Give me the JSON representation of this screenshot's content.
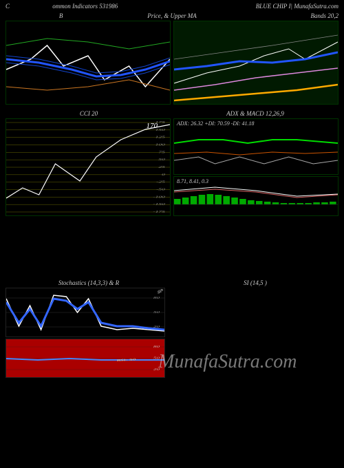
{
  "header": {
    "left_prefix": "C",
    "left_text": "ommon Indicators 531986",
    "right_text": "BLUE CHIP I| MunafaSutra.com"
  },
  "row1_titles": {
    "left": "B",
    "center": "Price, & Upper MA",
    "right": "Bands 20,2"
  },
  "chart_bb_left": {
    "background": "#000000",
    "border": "#003300",
    "lines": [
      {
        "color": "#ffffff",
        "width": 1.5,
        "points": [
          [
            0,
            70
          ],
          [
            15,
            55
          ],
          [
            25,
            35
          ],
          [
            35,
            65
          ],
          [
            50,
            50
          ],
          [
            60,
            85
          ],
          [
            75,
            65
          ],
          [
            85,
            95
          ],
          [
            100,
            55
          ]
        ]
      },
      {
        "color": "#2255ff",
        "width": 3,
        "points": [
          [
            0,
            55
          ],
          [
            20,
            60
          ],
          [
            40,
            70
          ],
          [
            55,
            80
          ],
          [
            70,
            78
          ],
          [
            85,
            70
          ],
          [
            100,
            58
          ]
        ]
      },
      {
        "color": "#1144cc",
        "width": 1,
        "points": [
          [
            0,
            50
          ],
          [
            20,
            55
          ],
          [
            40,
            65
          ],
          [
            55,
            75
          ],
          [
            70,
            73
          ],
          [
            85,
            65
          ],
          [
            100,
            53
          ]
        ]
      },
      {
        "color": "#1144cc",
        "width": 1,
        "points": [
          [
            0,
            60
          ],
          [
            20,
            65
          ],
          [
            40,
            75
          ],
          [
            55,
            85
          ],
          [
            70,
            83
          ],
          [
            85,
            75
          ],
          [
            100,
            63
          ]
        ]
      },
      {
        "color": "#22aa22",
        "width": 1,
        "points": [
          [
            0,
            35
          ],
          [
            25,
            25
          ],
          [
            50,
            30
          ],
          [
            75,
            40
          ],
          [
            100,
            30
          ]
        ]
      },
      {
        "color": "#cc7722",
        "width": 1,
        "points": [
          [
            0,
            95
          ],
          [
            25,
            100
          ],
          [
            50,
            95
          ],
          [
            75,
            85
          ],
          [
            100,
            100
          ]
        ]
      }
    ]
  },
  "chart_bb_right": {
    "background": "#011a01",
    "border": "#003300",
    "lines": [
      {
        "color": "#ffffff",
        "width": 1,
        "points": [
          [
            0,
            90
          ],
          [
            20,
            75
          ],
          [
            40,
            65
          ],
          [
            55,
            50
          ],
          [
            70,
            40
          ],
          [
            80,
            55
          ],
          [
            100,
            30
          ]
        ]
      },
      {
        "color": "#2255ff",
        "width": 3,
        "points": [
          [
            0,
            70
          ],
          [
            20,
            65
          ],
          [
            40,
            58
          ],
          [
            60,
            60
          ],
          [
            80,
            55
          ],
          [
            100,
            45
          ]
        ]
      },
      {
        "color": "#dd88dd",
        "width": 1.5,
        "points": [
          [
            0,
            100
          ],
          [
            25,
            92
          ],
          [
            50,
            82
          ],
          [
            75,
            75
          ],
          [
            100,
            68
          ]
        ]
      },
      {
        "color": "#ffaa00",
        "width": 2.5,
        "points": [
          [
            0,
            115
          ],
          [
            25,
            110
          ],
          [
            50,
            105
          ],
          [
            75,
            100
          ],
          [
            100,
            92
          ]
        ]
      },
      {
        "color": "#888888",
        "width": 0.8,
        "points": [
          [
            0,
            55
          ],
          [
            30,
            45
          ],
          [
            60,
            35
          ],
          [
            100,
            20
          ]
        ]
      }
    ]
  },
  "row2_titles": {
    "left": "CCI 20",
    "right": "ADX  & MACD 12,26,9"
  },
  "cci_chart": {
    "background": "#000000",
    "border": "#003300",
    "grid_color": "#666600",
    "ytick_labels": [
      175,
      150,
      125,
      100,
      75,
      50,
      25,
      0,
      -25,
      -50,
      -100,
      -150,
      -175
    ],
    "value_annotation": "170",
    "line": {
      "color": "#ffffff",
      "width": 1.2,
      "points": [
        [
          0,
          115
        ],
        [
          10,
          100
        ],
        [
          20,
          110
        ],
        [
          30,
          65
        ],
        [
          45,
          90
        ],
        [
          55,
          55
        ],
        [
          70,
          30
        ],
        [
          85,
          15
        ],
        [
          100,
          8
        ]
      ]
    }
  },
  "adx_chart": {
    "background": "#000000",
    "border": "#003300",
    "text": "ADX: 26.32  +DI: 70.59 -DI: 41.18",
    "lines": [
      {
        "color": "#00dd00",
        "width": 2,
        "points": [
          [
            0,
            35
          ],
          [
            15,
            30
          ],
          [
            30,
            30
          ],
          [
            45,
            35
          ],
          [
            60,
            30
          ],
          [
            75,
            30
          ],
          [
            100,
            35
          ]
        ]
      },
      {
        "color": "#cc5500",
        "width": 1,
        "points": [
          [
            0,
            50
          ],
          [
            20,
            48
          ],
          [
            40,
            52
          ],
          [
            60,
            48
          ],
          [
            80,
            50
          ],
          [
            100,
            48
          ]
        ]
      },
      {
        "color": "#aaaaaa",
        "width": 1,
        "points": [
          [
            0,
            60
          ],
          [
            15,
            55
          ],
          [
            25,
            65
          ],
          [
            40,
            55
          ],
          [
            55,
            65
          ],
          [
            70,
            55
          ],
          [
            85,
            65
          ],
          [
            100,
            60
          ]
        ]
      }
    ]
  },
  "macd_chart": {
    "background": "#000000",
    "border": "#003300",
    "text": "8.71, 8.41, 0.3",
    "hist_color": "#00aa00",
    "hist_values": [
      8,
      10,
      12,
      14,
      15,
      14,
      12,
      10,
      8,
      6,
      5,
      4,
      3,
      2,
      2,
      2,
      2,
      3,
      3,
      4
    ],
    "lines": [
      {
        "color": "#ffffff",
        "width": 1,
        "points": [
          [
            0,
            20
          ],
          [
            25,
            15
          ],
          [
            50,
            20
          ],
          [
            75,
            28
          ],
          [
            100,
            25
          ]
        ]
      },
      {
        "color": "#dd6666",
        "width": 1,
        "points": [
          [
            0,
            22
          ],
          [
            25,
            18
          ],
          [
            50,
            22
          ],
          [
            75,
            30
          ],
          [
            100,
            26
          ]
        ]
      }
    ]
  },
  "lower_titles": {
    "left": "Stochastics              (14,3,3) & R",
    "right": "SI                (14,5                        )"
  },
  "stoch_chart": {
    "grid_color": "#333333",
    "yticks": [
      80,
      50,
      20
    ],
    "lines": [
      {
        "color": "#ffffff",
        "width": 1.5,
        "points": [
          [
            0,
            15
          ],
          [
            8,
            55
          ],
          [
            15,
            25
          ],
          [
            22,
            60
          ],
          [
            30,
            10
          ],
          [
            38,
            12
          ],
          [
            45,
            35
          ],
          [
            52,
            15
          ],
          [
            60,
            55
          ],
          [
            70,
            60
          ],
          [
            80,
            58
          ],
          [
            90,
            60
          ],
          [
            100,
            62
          ]
        ]
      },
      {
        "color": "#3366ff",
        "width": 3,
        "points": [
          [
            0,
            20
          ],
          [
            8,
            50
          ],
          [
            15,
            30
          ],
          [
            22,
            55
          ],
          [
            30,
            15
          ],
          [
            38,
            18
          ],
          [
            45,
            30
          ],
          [
            52,
            20
          ],
          [
            60,
            50
          ],
          [
            70,
            55
          ],
          [
            80,
            55
          ],
          [
            90,
            58
          ],
          [
            100,
            60
          ]
        ]
      }
    ],
    "annotation": "gP"
  },
  "rsi_chart": {
    "background": "#aa0000",
    "grid_color": "#552222",
    "yticks": [
      80,
      50,
      20
    ],
    "annotation": "RSI: 50",
    "line": {
      "color": "#4488ff",
      "width": 2,
      "points": [
        [
          0,
          28
        ],
        [
          20,
          30
        ],
        [
          40,
          28
        ],
        [
          60,
          30
        ],
        [
          80,
          30
        ],
        [
          100,
          30
        ]
      ]
    }
  },
  "watermark": "MunafaSutra.com"
}
